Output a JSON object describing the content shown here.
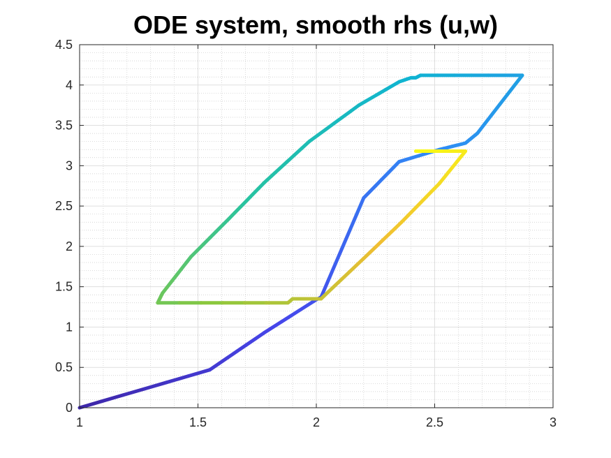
{
  "chart_data": {
    "type": "line",
    "title": "ODE system, smooth rhs (u,w)",
    "xlabel": "",
    "ylabel": "",
    "xlim": [
      1,
      3
    ],
    "ylim": [
      0,
      4.5
    ],
    "grid": true,
    "minor_grid": true,
    "colormap": "parula",
    "x_ticks": [
      "1",
      "1.5",
      "2",
      "2.5",
      "3"
    ],
    "x_tick_values": [
      1,
      1.5,
      2,
      2.5,
      3
    ],
    "y_ticks": [
      "0",
      "0.5",
      "1",
      "1.5",
      "2",
      "2.5",
      "3",
      "3.5",
      "4",
      "4.5"
    ],
    "y_tick_values": [
      0,
      0.5,
      1,
      1.5,
      2,
      2.5,
      3,
      3.5,
      4,
      4.5
    ],
    "series": [
      {
        "x": [
          1.0,
          1.55,
          1.78,
          2.0,
          2.02,
          2.2,
          2.35,
          2.52,
          2.63,
          2.68,
          2.87,
          2.44,
          2.42,
          2.4,
          2.35,
          2.18,
          1.97,
          1.78,
          1.63,
          1.47,
          1.35,
          1.33,
          1.88,
          1.9,
          2.02,
          2.2,
          2.36,
          2.52,
          2.63,
          2.42
        ],
        "y": [
          0.0,
          0.47,
          0.93,
          1.34,
          1.37,
          2.6,
          3.05,
          3.2,
          3.28,
          3.4,
          4.12,
          4.12,
          4.09,
          4.09,
          4.04,
          3.75,
          3.3,
          2.79,
          2.34,
          1.87,
          1.42,
          1.3,
          1.3,
          1.35,
          1.35,
          1.85,
          2.3,
          2.78,
          3.18,
          3.18
        ]
      }
    ]
  }
}
